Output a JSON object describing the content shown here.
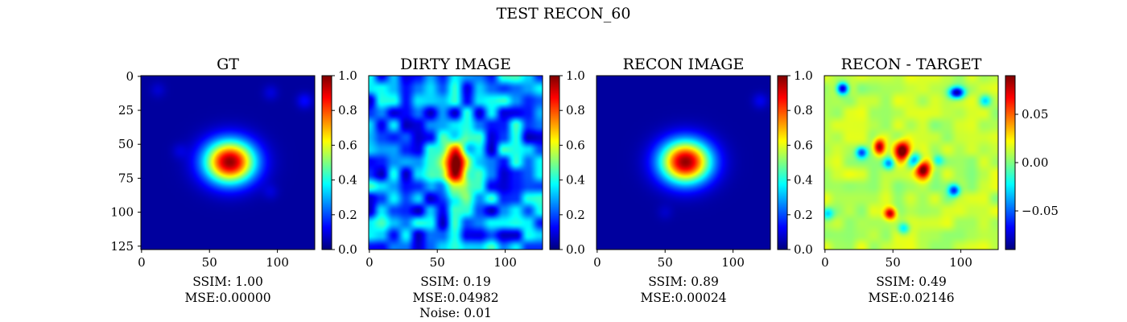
{
  "figure": {
    "title": "TEST RECON_60"
  },
  "chart_data": [
    {
      "type": "heatmap",
      "title": "GT",
      "image_size": 128,
      "xlim": [
        0,
        128
      ],
      "ylim": [
        128,
        0
      ],
      "xticks": [
        0,
        50,
        100
      ],
      "yticks": [
        0,
        25,
        50,
        75,
        100,
        125
      ],
      "show_yticks": true,
      "colorbar": {
        "min": 0.0,
        "max": 1.0,
        "ticks": [
          "0.0",
          "0.2",
          "0.4",
          "0.6",
          "0.8",
          "1.0"
        ],
        "tick_values": [
          0,
          0.2,
          0.4,
          0.6,
          0.8,
          1.0
        ]
      },
      "colormap": "jet",
      "field": {
        "background": 0.03,
        "blobs": [
          {
            "x": 65,
            "y": 63,
            "sx": 13,
            "sy": 11,
            "amp": 0.95
          }
        ],
        "faint": [
          {
            "x": 12,
            "y": 10,
            "amp": 0.05
          },
          {
            "x": 95,
            "y": 12,
            "amp": 0.06
          },
          {
            "x": 120,
            "y": 18,
            "amp": 0.1
          },
          {
            "x": 28,
            "y": 55,
            "amp": 0.05
          },
          {
            "x": 95,
            "y": 85,
            "amp": 0.05
          }
        ]
      },
      "stats": [
        "SSIM: 1.00",
        "MSE:0.00000"
      ]
    },
    {
      "type": "heatmap",
      "title": "DIRTY IMAGE",
      "image_size": 128,
      "xlim": [
        0,
        128
      ],
      "ylim": [
        128,
        0
      ],
      "xticks": [
        0,
        50,
        100
      ],
      "yticks": [],
      "show_yticks": false,
      "colorbar": {
        "min": 0.0,
        "max": 1.0,
        "ticks": [
          "0.0",
          "0.2",
          "0.4",
          "0.6",
          "0.8",
          "1.0"
        ],
        "tick_values": [
          0,
          0.2,
          0.4,
          0.6,
          0.8,
          1.0
        ]
      },
      "colormap": "jet",
      "field": {
        "background": 0.25,
        "blobs": [
          {
            "x": 64,
            "y": 63,
            "sx": 6,
            "sy": 10,
            "amp": 0.62
          },
          {
            "x": 62,
            "y": 80,
            "sx": 8,
            "sy": 8,
            "amp": 0.25
          }
        ],
        "noise": 0.2
      },
      "stats": [
        "SSIM: 0.19",
        "MSE:0.04982",
        "Noise: 0.01"
      ]
    },
    {
      "type": "heatmap",
      "title": "RECON IMAGE",
      "image_size": 128,
      "xlim": [
        0,
        128
      ],
      "ylim": [
        128,
        0
      ],
      "xticks": [
        0,
        50,
        100
      ],
      "yticks": [],
      "show_yticks": false,
      "colorbar": {
        "min": 0.0,
        "max": 1.0,
        "ticks": [
          "0.0",
          "0.2",
          "0.4",
          "0.6",
          "0.8",
          "1.0"
        ],
        "tick_values": [
          0,
          0.2,
          0.4,
          0.6,
          0.8,
          1.0
        ]
      },
      "colormap": "jet",
      "field": {
        "background": 0.03,
        "blobs": [
          {
            "x": 65,
            "y": 63,
            "sx": 13,
            "sy": 11,
            "amp": 0.95
          }
        ],
        "faint": [
          {
            "x": 120,
            "y": 18,
            "amp": 0.08
          },
          {
            "x": 50,
            "y": 100,
            "amp": 0.04
          }
        ]
      },
      "stats": [
        "SSIM: 0.89",
        "MSE:0.00024"
      ]
    },
    {
      "type": "heatmap",
      "title": "RECON - TARGET",
      "image_size": 128,
      "xlim": [
        0,
        128
      ],
      "ylim": [
        128,
        0
      ],
      "xticks": [
        0,
        50,
        100
      ],
      "yticks": [],
      "show_yticks": false,
      "colorbar": {
        "min": -0.09,
        "max": 0.09,
        "ticks": [
          "−0.05",
          "0.00",
          "0.05"
        ],
        "tick_values": [
          -0.05,
          0.0,
          0.05
        ]
      },
      "colormap": "jet",
      "field": {
        "background": 0.01,
        "blobs": [
          {
            "x": 13,
            "y": 9,
            "sx": 3,
            "sy": 3,
            "amp": -0.09
          },
          {
            "x": 97,
            "y": 12,
            "sx": 4,
            "sy": 3,
            "amp": -0.09
          },
          {
            "x": 118,
            "y": 18,
            "sx": 3,
            "sy": 3,
            "amp": -0.04
          },
          {
            "x": 27,
            "y": 56,
            "sx": 3,
            "sy": 3,
            "amp": -0.07
          },
          {
            "x": 40,
            "y": 52,
            "sx": 3,
            "sy": 4,
            "amp": 0.08
          },
          {
            "x": 57,
            "y": 55,
            "sx": 4,
            "sy": 5,
            "amp": 0.09
          },
          {
            "x": 72,
            "y": 68,
            "sx": 4,
            "sy": 5,
            "amp": 0.09
          },
          {
            "x": 47,
            "y": 64,
            "sx": 3,
            "sy": 3,
            "amp": -0.05
          },
          {
            "x": 66,
            "y": 62,
            "sx": 4,
            "sy": 4,
            "amp": -0.06
          },
          {
            "x": 83,
            "y": 62,
            "sx": 3,
            "sy": 3,
            "amp": -0.04
          },
          {
            "x": 95,
            "y": 84,
            "sx": 3,
            "sy": 3,
            "amp": -0.07
          },
          {
            "x": 48,
            "y": 101,
            "sx": 3,
            "sy": 3,
            "amp": 0.07
          },
          {
            "x": 58,
            "y": 112,
            "sx": 3,
            "sy": 3,
            "amp": -0.04
          },
          {
            "x": 2,
            "y": 101,
            "sx": 3,
            "sy": 3,
            "amp": -0.04
          }
        ],
        "noise": 0.01
      },
      "stats": [
        "SSIM: 0.49",
        "MSE:0.02146"
      ]
    }
  ]
}
